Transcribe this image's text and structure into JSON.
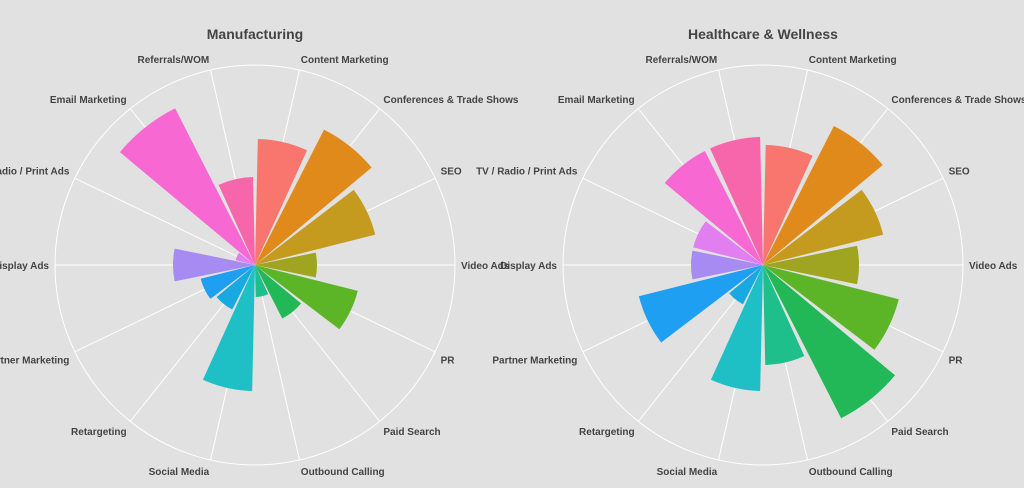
{
  "chart_data": [
    {
      "type": "polar-bar",
      "title": "Manufacturing",
      "categories": [
        "Content Marketing",
        "Conferences & Trade Shows",
        "SEO",
        "Video Ads",
        "PR",
        "Paid Search",
        "Outbound Calling",
        "Social Media",
        "Retargeting",
        "Partner Marketing",
        "Display Ads",
        "TV / Radio / Print Ads",
        "Email Marketing",
        "Referrals/WOM"
      ],
      "values": [
        63,
        76,
        62,
        31,
        53,
        30,
        16,
        63,
        25,
        28,
        41,
        10,
        88,
        44
      ],
      "colors": [
        "#f8766d",
        "#e18a1c",
        "#c49a1f",
        "#9fa520",
        "#5bb526",
        "#23b857",
        "#1ebf8a",
        "#1ec0c6",
        "#18a8e2",
        "#1e9ff2",
        "#a78bf3",
        "#e17ef0",
        "#f768d3",
        "#f766ab"
      ],
      "ylim": [
        0,
        100
      ],
      "grid": true
    },
    {
      "type": "polar-bar",
      "title": "Healthcare & Wellness",
      "categories": [
        "Content Marketing",
        "Conferences & Trade Shows",
        "SEO",
        "Video Ads",
        "PR",
        "Paid Search",
        "Outbound Calling",
        "Social Media",
        "Retargeting",
        "Partner Marketing",
        "Display Ads",
        "TV / Radio / Print Ads",
        "Email Marketing",
        "Referrals/WOM"
      ],
      "values": [
        60,
        78,
        62,
        48,
        70,
        86,
        50,
        63,
        22,
        64,
        36,
        36,
        64,
        64
      ],
      "colors": [
        "#f8766d",
        "#e18a1c",
        "#c49a1f",
        "#9fa520",
        "#5bb526",
        "#23b857",
        "#1ebf8a",
        "#1ec0c6",
        "#18a8e2",
        "#1e9ff2",
        "#a78bf3",
        "#e17ef0",
        "#f768d3",
        "#f766ab"
      ],
      "ylim": [
        0,
        100
      ],
      "grid": true
    }
  ]
}
